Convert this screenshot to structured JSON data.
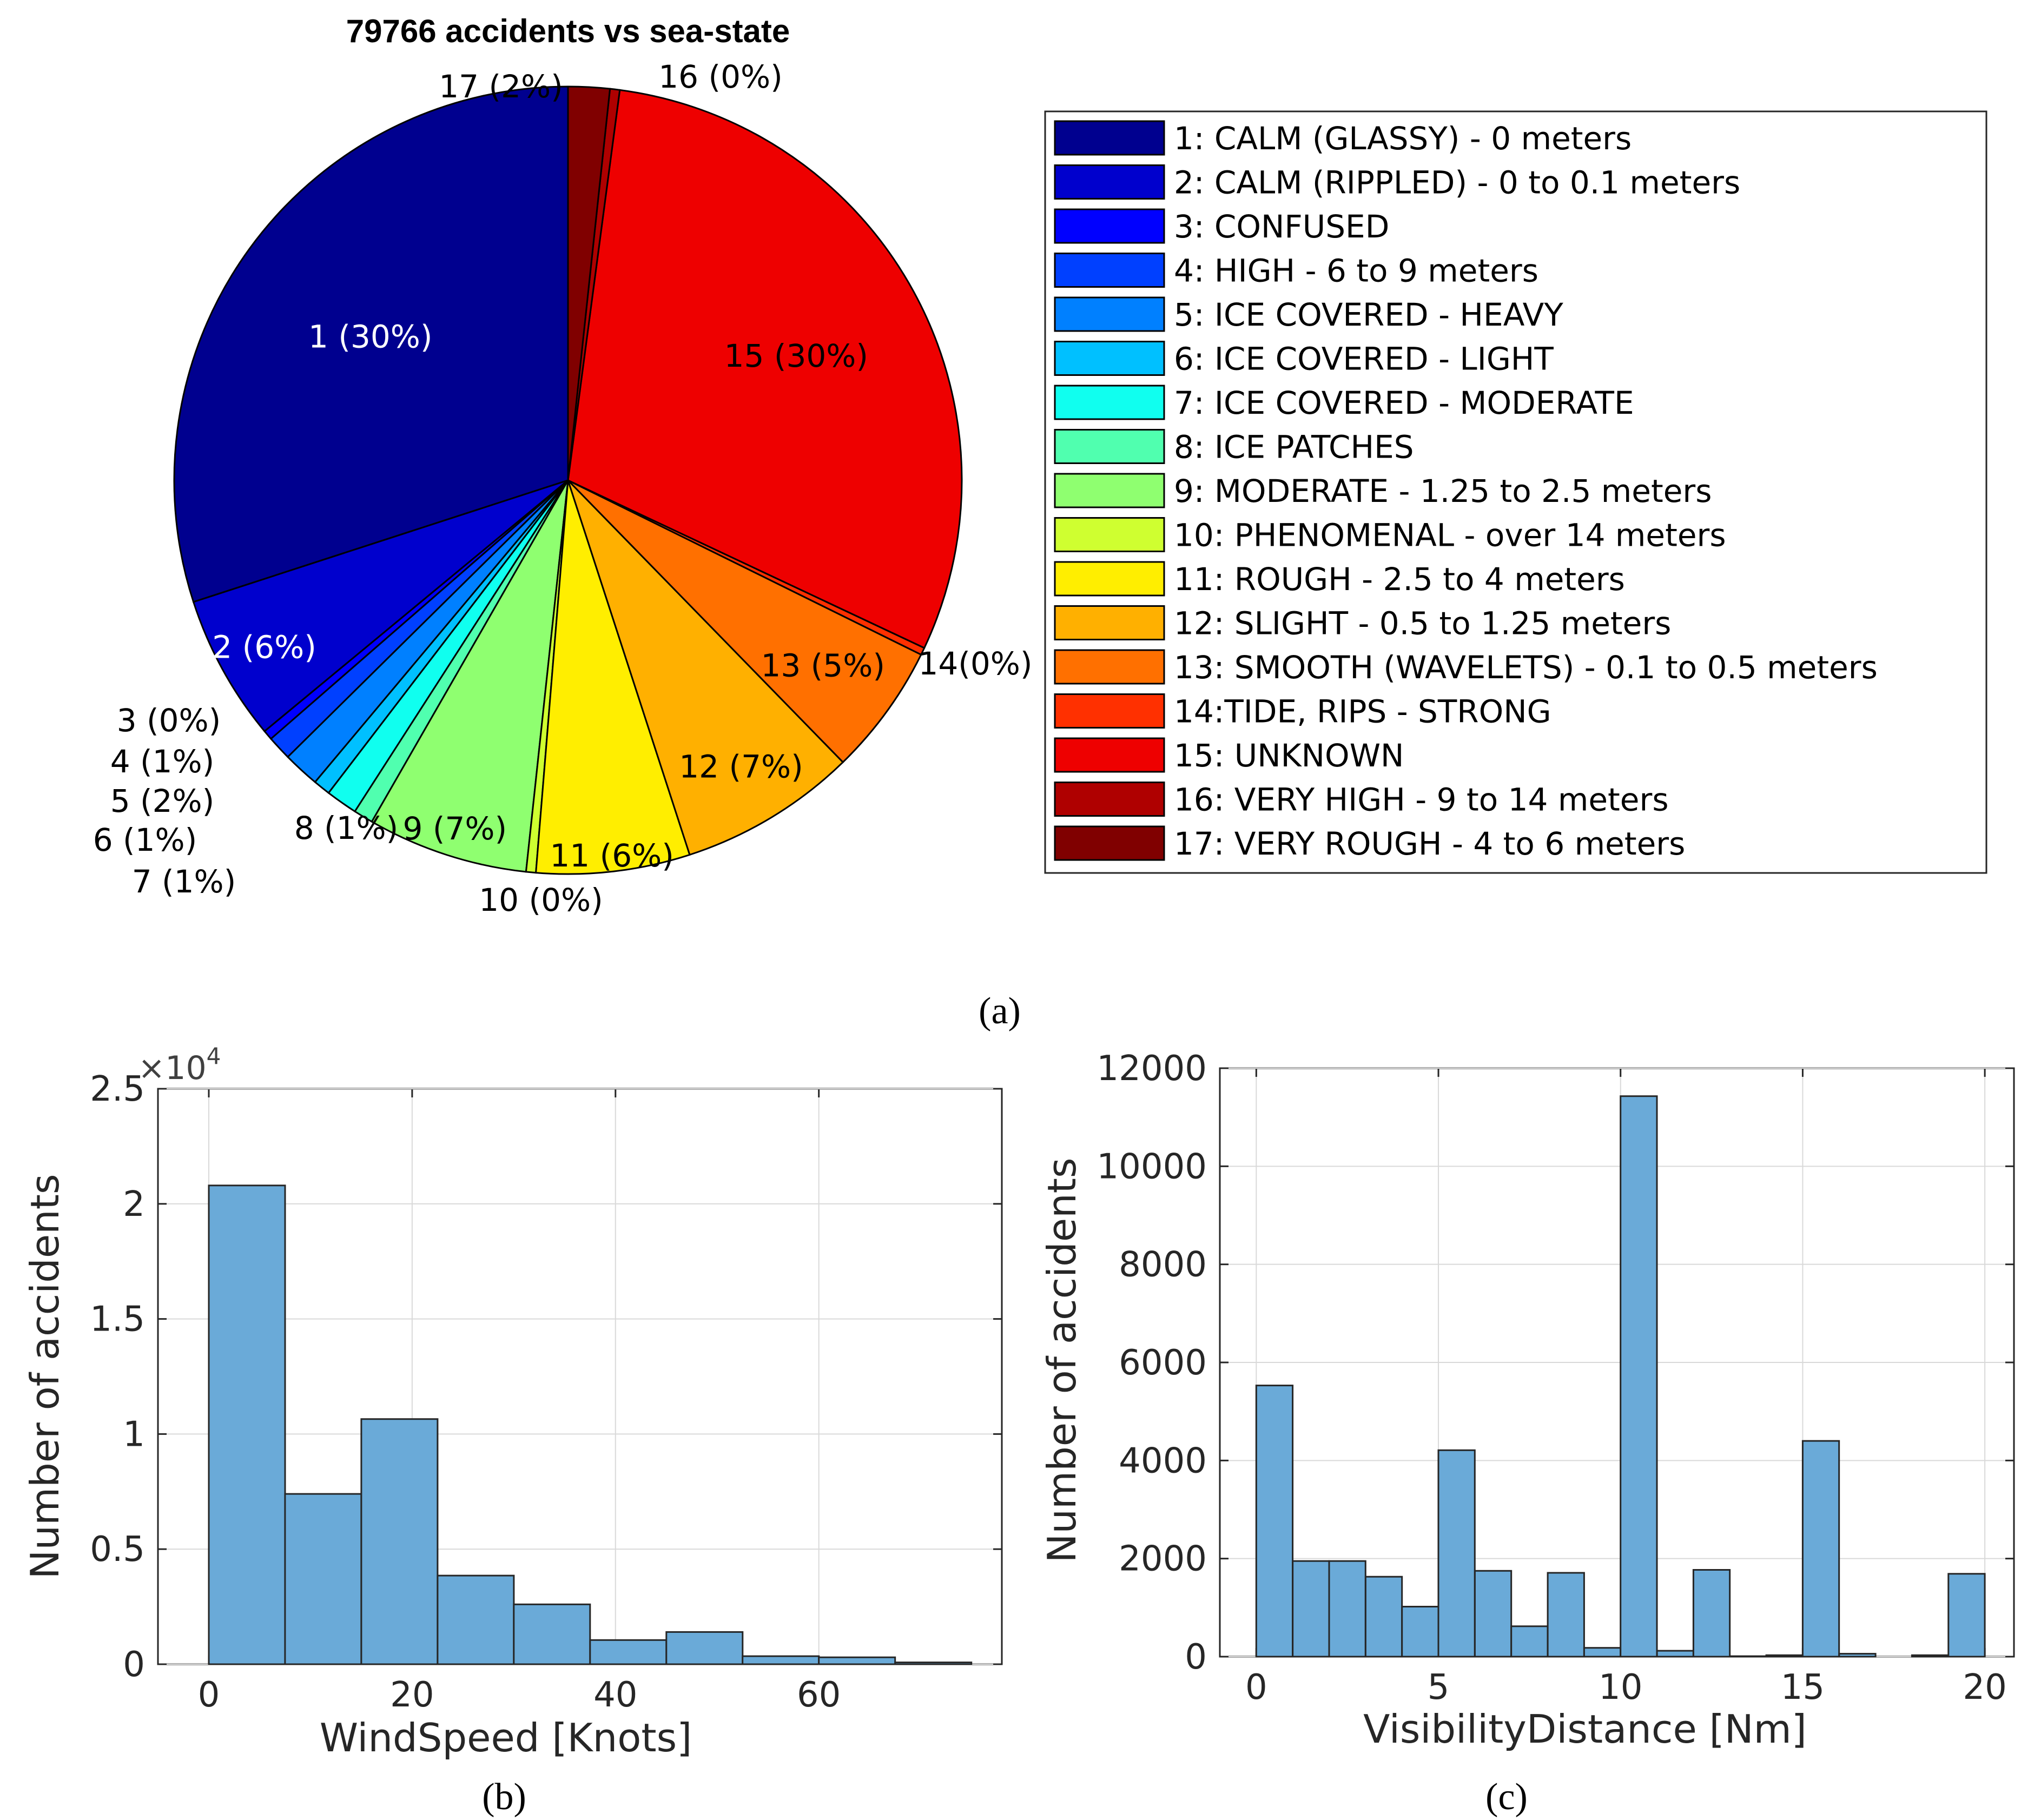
{
  "chart_data": [
    {
      "type": "pie",
      "title": "79766 accidents vs sea-state",
      "panel_label": "(a)",
      "slices": [
        {
          "label": "1 (30%)",
          "value": 30,
          "color": "#00008f",
          "text_color": "#ffffff"
        },
        {
          "label": "2  (6%)",
          "value": 6,
          "color": "#0000cd",
          "text_color": "#ffffff"
        },
        {
          "label": "3  (0%)",
          "value": 0.4,
          "color": "#0000ff",
          "text_color": "#000000"
        },
        {
          "label": "4  (1%)",
          "value": 1,
          "color": "#0040ff",
          "text_color": "#000000"
        },
        {
          "label": "5  (2%)",
          "value": 1.5,
          "color": "#0080ff",
          "text_color": "#000000"
        },
        {
          "label": "6  (1%)",
          "value": 0.7,
          "color": "#00c0ff",
          "text_color": "#000000"
        },
        {
          "label": "7  (1%)",
          "value": 1.3,
          "color": "#10ffef",
          "text_color": "#000000"
        },
        {
          "label": "8  (1%)",
          "value": 0.8,
          "color": "#50ffaf",
          "text_color": "#000000"
        },
        {
          "label": "9  (7%)",
          "value": 6.6,
          "color": "#8fff70",
          "text_color": "#000000"
        },
        {
          "label": "10  (0%)",
          "value": 0.4,
          "color": "#cfff30",
          "text_color": "#000000"
        },
        {
          "label": "11  (6%)",
          "value": 6.3,
          "color": "#ffee00",
          "text_color": "#000000"
        },
        {
          "label": "12  (7%)",
          "value": 7.3,
          "color": "#ffb000",
          "text_color": "#000000"
        },
        {
          "label": "13  (5%)",
          "value": 5.4,
          "color": "#ff7000",
          "text_color": "#000000"
        },
        {
          "label": "14(0%)",
          "value": 0.3,
          "color": "#ff3000",
          "text_color": "#000000"
        },
        {
          "label": "15 (30%)",
          "value": 29.9,
          "color": "#ee0000",
          "text_color": "#000000"
        },
        {
          "label": "16  (0%)",
          "value": 0.4,
          "color": "#af0000",
          "text_color": "#000000"
        },
        {
          "label": "17  (2%)",
          "value": 1.7,
          "color": "#800000",
          "text_color": "#000000"
        }
      ],
      "legend": [
        "1: CALM (GLASSY) - 0 meters",
        "2: CALM (RIPPLED) - 0 to 0.1 meters",
        "3: CONFUSED",
        "4: HIGH - 6 to 9 meters",
        "5: ICE COVERED - HEAVY",
        "6: ICE COVERED - LIGHT",
        "7: ICE COVERED - MODERATE",
        "8: ICE PATCHES",
        "9: MODERATE - 1.25 to 2.5 meters",
        "10: PHENOMENAL - over 14 meters",
        "11: ROUGH - 2.5 to 4 meters",
        "12: SLIGHT - 0.5 to 1.25 meters",
        "13: SMOOTH (WAVELETS) - 0.1 to 0.5 meters",
        "14:TIDE, RIPS - STRONG",
        "15: UNKNOWN",
        "16: VERY HIGH - 9 to 14 meters",
        "17: VERY ROUGH - 4 to 6 meters"
      ],
      "legend_placement": "right"
    },
    {
      "type": "bar",
      "panel_label": "(b)",
      "xlabel": "WindSpeed [Knots]",
      "ylabel": "Number of accidents",
      "y_exponent_label": "×10",
      "y_exponent_power": "4",
      "xlim": [
        -5,
        78
      ],
      "ylim": [
        0,
        2.5
      ],
      "grid": true,
      "x_ticks": [
        0,
        20,
        40,
        60
      ],
      "y_ticks": [
        0,
        0.5,
        1,
        1.5,
        2,
        2.5
      ],
      "y_tick_labels": [
        "0",
        "0.5",
        "1",
        "1.5",
        "2",
        "2.5"
      ],
      "bin_edges": [
        0,
        7.5,
        15,
        22.5,
        30,
        37.5,
        45,
        52.5,
        60,
        67.5,
        75
      ],
      "values": [
        2.08,
        0.74,
        1.065,
        0.385,
        0.26,
        0.105,
        0.14,
        0.035,
        0.03,
        0.008
      ],
      "bar_color": "#6aaad8"
    },
    {
      "type": "bar",
      "panel_label": "(c)",
      "xlabel": "VisibilityDistance [Nm]",
      "ylabel": "Number of accidents",
      "xlim": [
        -1,
        20.8
      ],
      "ylim": [
        0,
        12000
      ],
      "grid": true,
      "x_ticks": [
        0,
        5,
        10,
        15,
        20
      ],
      "y_ticks": [
        0,
        2000,
        4000,
        6000,
        8000,
        10000,
        12000
      ],
      "y_tick_labels": [
        "0",
        "2000",
        "4000",
        "6000",
        "8000",
        "10000",
        "12000"
      ],
      "bin_edges": [
        0,
        1,
        2,
        3,
        4,
        5,
        6,
        7,
        8,
        9,
        10,
        11,
        12,
        13,
        14,
        15,
        16,
        17,
        18,
        19,
        20
      ],
      "values": [
        5530,
        1950,
        1950,
        1630,
        1020,
        4210,
        1750,
        620,
        1710,
        180,
        11430,
        120,
        1770,
        10,
        30,
        4400,
        60,
        0,
        30,
        1690
      ],
      "bar_color": "#6aaad8"
    }
  ]
}
